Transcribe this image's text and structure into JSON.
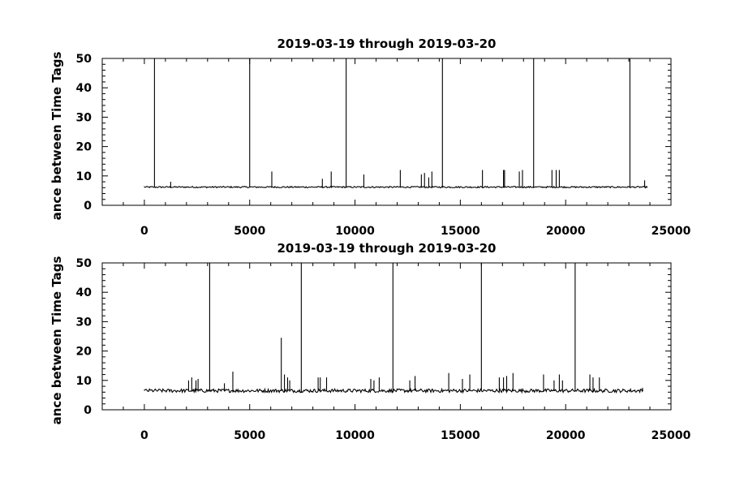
{
  "chart_data": [
    {
      "type": "line",
      "title": "2019-03-19 through 2019-03-20",
      "xlabel": "",
      "ylabel": "ance between Time Tags",
      "xlim": [
        -2000,
        25000
      ],
      "ylim": [
        0,
        50
      ],
      "xticks": [
        0,
        5000,
        10000,
        15000,
        20000,
        25000
      ],
      "yticks": [
        0,
        10,
        20,
        30,
        40,
        50
      ],
      "grid": false,
      "baseline": 6.2,
      "x_range": [
        0,
        23900
      ],
      "large_spikes": [
        {
          "x": 480,
          "y": 50
        },
        {
          "x": 5000,
          "y": 50
        },
        {
          "x": 9580,
          "y": 50
        },
        {
          "x": 14150,
          "y": 50
        },
        {
          "x": 18480,
          "y": 50
        },
        {
          "x": 23050,
          "y": 50
        }
      ],
      "small_spikes": [
        {
          "x": 1250,
          "y": 8
        },
        {
          "x": 6050,
          "y": 11.5
        },
        {
          "x": 8450,
          "y": 9
        },
        {
          "x": 8870,
          "y": 11.5
        },
        {
          "x": 10420,
          "y": 10.5
        },
        {
          "x": 12150,
          "y": 12
        },
        {
          "x": 13150,
          "y": 10.5
        },
        {
          "x": 13300,
          "y": 11
        },
        {
          "x": 13500,
          "y": 9.5
        },
        {
          "x": 13650,
          "y": 11.5
        },
        {
          "x": 16050,
          "y": 12
        },
        {
          "x": 17050,
          "y": 12
        },
        {
          "x": 17100,
          "y": 12
        },
        {
          "x": 17800,
          "y": 11.5
        },
        {
          "x": 17950,
          "y": 12
        },
        {
          "x": 19350,
          "y": 12
        },
        {
          "x": 19550,
          "y": 12
        },
        {
          "x": 19700,
          "y": 12
        },
        {
          "x": 23750,
          "y": 8.5
        },
        {
          "x": 23900,
          "y": 12
        }
      ]
    },
    {
      "type": "line",
      "title": "2019-03-19 through 2019-03-20",
      "xlabel": "",
      "ylabel": "ance between Time Tags",
      "xlim": [
        -2000,
        25000
      ],
      "ylim": [
        0,
        50
      ],
      "xticks": [
        0,
        5000,
        10000,
        15000,
        20000,
        25000
      ],
      "yticks": [
        0,
        10,
        20,
        30,
        40,
        50
      ],
      "grid": false,
      "baseline": 6.5,
      "x_range": [
        0,
        23700
      ],
      "large_spikes": [
        {
          "x": 3100,
          "y": 50
        },
        {
          "x": 7450,
          "y": 50
        },
        {
          "x": 11800,
          "y": 50
        },
        {
          "x": 16000,
          "y": 50
        },
        {
          "x": 20450,
          "y": 50
        }
      ],
      "small_spikes": [
        {
          "x": 2100,
          "y": 10
        },
        {
          "x": 2250,
          "y": 11
        },
        {
          "x": 2450,
          "y": 10
        },
        {
          "x": 2550,
          "y": 10.5
        },
        {
          "x": 3800,
          "y": 9
        },
        {
          "x": 4200,
          "y": 13
        },
        {
          "x": 6500,
          "y": 24.5
        },
        {
          "x": 6650,
          "y": 12
        },
        {
          "x": 6800,
          "y": 11
        },
        {
          "x": 6900,
          "y": 10
        },
        {
          "x": 8250,
          "y": 11
        },
        {
          "x": 8350,
          "y": 11
        },
        {
          "x": 8650,
          "y": 11
        },
        {
          "x": 10750,
          "y": 10.5
        },
        {
          "x": 10900,
          "y": 10
        },
        {
          "x": 11150,
          "y": 11
        },
        {
          "x": 12600,
          "y": 10
        },
        {
          "x": 12850,
          "y": 11.5
        },
        {
          "x": 14450,
          "y": 12.5
        },
        {
          "x": 15100,
          "y": 10.5
        },
        {
          "x": 15450,
          "y": 12
        },
        {
          "x": 16850,
          "y": 11
        },
        {
          "x": 17050,
          "y": 11
        },
        {
          "x": 17200,
          "y": 11.5
        },
        {
          "x": 17500,
          "y": 12.5
        },
        {
          "x": 18950,
          "y": 12
        },
        {
          "x": 19450,
          "y": 10
        },
        {
          "x": 19700,
          "y": 12
        },
        {
          "x": 19850,
          "y": 10
        },
        {
          "x": 21150,
          "y": 12
        },
        {
          "x": 21300,
          "y": 11
        },
        {
          "x": 21600,
          "y": 11
        },
        {
          "x": 23650,
          "y": 7.5
        }
      ]
    }
  ]
}
